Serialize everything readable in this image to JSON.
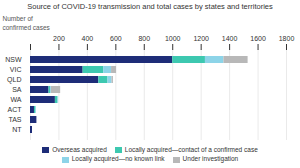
{
  "chart_data": {
    "type": "bar",
    "orientation": "horizontal",
    "stacked": true,
    "title": "Source of COVID-19 transmission and total cases by states and territories",
    "annotations": [
      "Number of",
      "confirmed cases"
    ],
    "categories": [
      "NSW",
      "VIC",
      "QLD",
      "SA",
      "WA",
      "ACT",
      "TAS",
      "NT"
    ],
    "series": [
      {
        "name": "Overseas acquired",
        "color": "#1e2d78",
        "values": [
          1000,
          370,
          480,
          130,
          175,
          28,
          45,
          14
        ]
      },
      {
        "name": "Locally acquired—contact of a confirmed case",
        "color": "#3dc8b0",
        "values": [
          230,
          145,
          65,
          12,
          18,
          10,
          0,
          0
        ]
      },
      {
        "name": "Locally acquired—no known link",
        "color": "#8dd4e8",
        "values": [
          130,
          55,
          28,
          5,
          5,
          4,
          0,
          0
        ]
      },
      {
        "name": "Under investigation",
        "color": "#b8b8b8",
        "values": [
          170,
          35,
          10,
          65,
          0,
          0,
          0,
          0
        ]
      }
    ],
    "xlim": [
      0,
      1800
    ],
    "xticks": [
      {
        "value": 0,
        "label": ""
      },
      200,
      400,
      600,
      800,
      1000,
      1200,
      1400,
      1600,
      1800
    ],
    "grid": true,
    "legend": "bottom"
  }
}
